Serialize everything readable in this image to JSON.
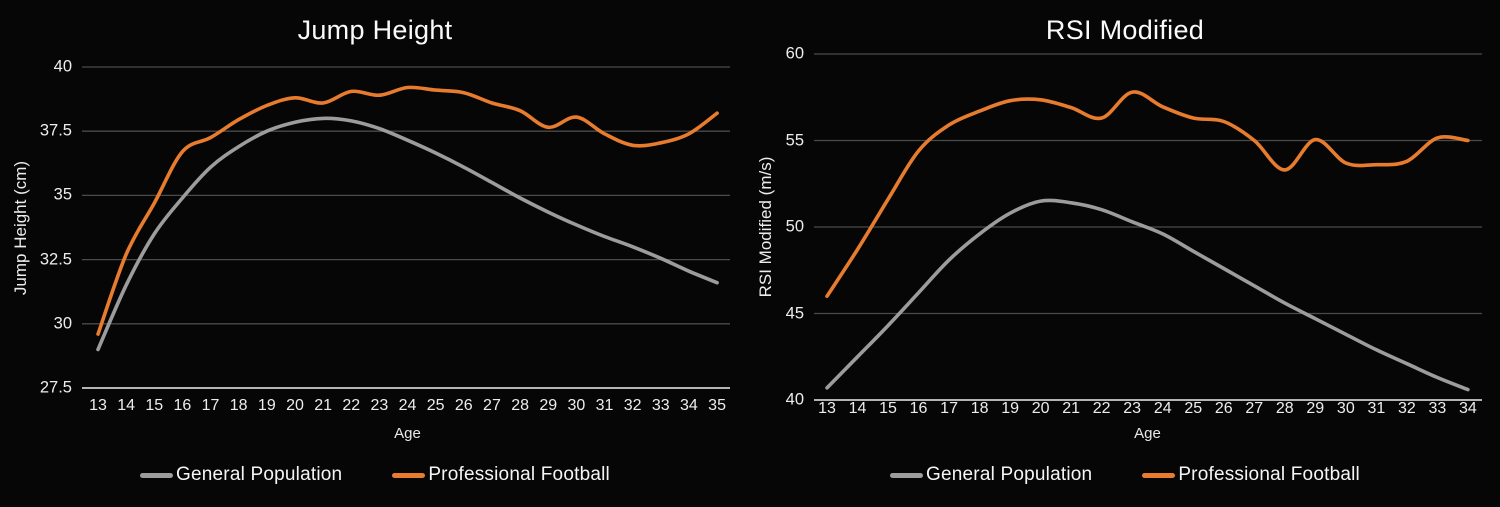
{
  "colors": {
    "background": "#060606",
    "grid": "#4a4a4a",
    "axis_line": "#b4b4b4",
    "text": "#f0f0f0",
    "general_population": "#9C9C9C",
    "professional_football": "#E87C2E"
  },
  "chart_data": [
    {
      "type": "line",
      "title": "Jump Height",
      "xlabel": "Age",
      "ylabel": "Jump Height (cm)",
      "x": [
        13,
        14,
        15,
        16,
        17,
        18,
        19,
        20,
        21,
        22,
        23,
        24,
        25,
        26,
        27,
        28,
        29,
        30,
        31,
        32,
        33,
        34,
        35
      ],
      "series": [
        {
          "name": "General Population",
          "color": "#9C9C9C",
          "values": [
            29.0,
            31.5,
            33.5,
            34.9,
            36.1,
            36.9,
            37.5,
            37.85,
            38.0,
            37.9,
            37.6,
            37.15,
            36.65,
            36.1,
            35.5,
            34.9,
            34.35,
            33.85,
            33.4,
            33.0,
            32.55,
            32.05,
            31.6
          ]
        },
        {
          "name": "Professional Football",
          "color": "#E87C2E",
          "values": [
            29.6,
            32.7,
            34.7,
            36.7,
            37.25,
            37.95,
            38.5,
            38.8,
            38.6,
            39.05,
            38.9,
            39.2,
            39.1,
            39.0,
            38.6,
            38.3,
            37.65,
            38.05,
            37.4,
            36.95,
            37.05,
            37.4,
            38.2
          ]
        }
      ],
      "ylim": [
        27.5,
        40
      ],
      "yticks": [
        27.5,
        30,
        32.5,
        35,
        37.5,
        40
      ],
      "grid": true,
      "legend_position": "bottom"
    },
    {
      "type": "line",
      "title": "RSI Modified",
      "xlabel": "Age",
      "ylabel": "RSI Modified (m/s)",
      "x": [
        13,
        14,
        15,
        16,
        17,
        18,
        19,
        20,
        21,
        22,
        23,
        24,
        25,
        26,
        27,
        28,
        29,
        30,
        31,
        32,
        33,
        34
      ],
      "series": [
        {
          "name": "General Population",
          "color": "#9C9C9C",
          "values": [
            40.7,
            42.5,
            44.3,
            46.2,
            48.1,
            49.6,
            50.8,
            51.5,
            51.4,
            51.0,
            50.3,
            49.6,
            48.6,
            47.6,
            46.6,
            45.6,
            44.7,
            43.8,
            42.9,
            42.1,
            41.3,
            40.6
          ]
        },
        {
          "name": "Professional Football",
          "color": "#E87C2E",
          "values": [
            46.0,
            48.7,
            51.6,
            54.4,
            55.9,
            56.7,
            57.3,
            57.35,
            56.9,
            56.3,
            57.8,
            56.95,
            56.3,
            56.1,
            55.0,
            53.3,
            55.05,
            53.7,
            53.6,
            53.8,
            55.15,
            55.0
          ]
        }
      ],
      "ylim": [
        40,
        60
      ],
      "yticks": [
        40,
        45,
        50,
        55,
        60
      ],
      "grid": true,
      "legend_position": "bottom"
    }
  ]
}
